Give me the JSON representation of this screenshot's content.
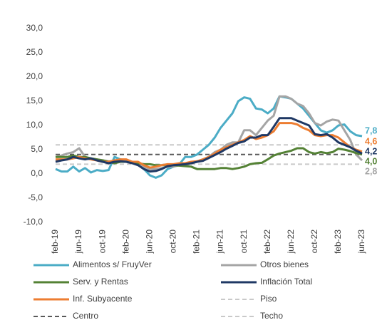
{
  "chart_data": {
    "type": "line",
    "categories": [
      "feb-19",
      null,
      null,
      null,
      "jun-19",
      null,
      null,
      null,
      "oct-19",
      null,
      null,
      null,
      "feb-20",
      null,
      null,
      null,
      "jun-20",
      null,
      null,
      null,
      "oct-20",
      null,
      null,
      null,
      "feb-21",
      null,
      null,
      null,
      "jun-21",
      null,
      null,
      null,
      "oct-21",
      null,
      null,
      null,
      "feb-22",
      null,
      null,
      null,
      "jun-22",
      null,
      null,
      null,
      "oct-22",
      null,
      null,
      null,
      "feb-23",
      null,
      null,
      null,
      "jun-23"
    ],
    "ylim": [
      -10,
      30
    ],
    "yticks": [
      {
        "value": -10,
        "label": "-10,0"
      },
      {
        "value": -5,
        "label": "-5,0"
      },
      {
        "value": 0,
        "label": "0,0"
      },
      {
        "value": 5,
        "label": "5,0"
      },
      {
        "value": 10,
        "label": "10,0"
      },
      {
        "value": 15,
        "label": "15,0"
      },
      {
        "value": 20,
        "label": "20,0"
      },
      {
        "value": 25,
        "label": "25,0"
      },
      {
        "value": 30,
        "label": "30,0"
      }
    ],
    "series": [
      {
        "name": "Alimentos  s/ FruyVer",
        "color": "#4bacc6",
        "values": [
          1.0,
          0.5,
          0.5,
          1.5,
          0.5,
          1.2,
          0.3,
          0.8,
          0.6,
          0.8,
          3.5,
          3.0,
          2.8,
          2.5,
          2.0,
          1.0,
          -0.3,
          -0.8,
          -0.3,
          1.0,
          1.5,
          2.0,
          3.5,
          3.5,
          4.0,
          5.0,
          6.0,
          7.5,
          9.5,
          11.0,
          12.5,
          15.0,
          15.8,
          15.5,
          13.5,
          13.3,
          12.5,
          13.5,
          16.0,
          15.8,
          15.5,
          14.5,
          13.5,
          12.0,
          10.5,
          9.0,
          8.5,
          9.0,
          10.0,
          10.2,
          8.8,
          8.0,
          7.8
        ],
        "value_labels": [
          null,
          null,
          null,
          null,
          null,
          null,
          null,
          null,
          null,
          null,
          null,
          null,
          null,
          null,
          null,
          null,
          null,
          null,
          null,
          null,
          null,
          null,
          null,
          null,
          null,
          null,
          null,
          null,
          null,
          null,
          null,
          null,
          null,
          null,
          null,
          null,
          null,
          null,
          null,
          null,
          null,
          null,
          null,
          null,
          null,
          null,
          null,
          null,
          null,
          null,
          null,
          null,
          "7,8"
        ]
      },
      {
        "name": "Otros bienes",
        "color": "#a5a5a5",
        "values": [
          3.5,
          3.8,
          4.2,
          4.5,
          5.3,
          3.5,
          3.2,
          3.0,
          2.8,
          2.6,
          2.5,
          2.6,
          2.5,
          2.3,
          2.0,
          1.5,
          1.0,
          1.0,
          1.2,
          1.5,
          1.5,
          1.8,
          1.8,
          2.2,
          2.5,
          3.0,
          3.5,
          4.5,
          5.0,
          6.0,
          6.5,
          6.5,
          9.0,
          9.0,
          8.0,
          9.5,
          11.0,
          12.0,
          16.0,
          16.0,
          15.5,
          14.5,
          14.0,
          12.5,
          10.5,
          10.0,
          10.8,
          11.2,
          11.0,
          9.0,
          7.0,
          4.0,
          2.8
        ],
        "value_labels": [
          null,
          null,
          null,
          null,
          null,
          null,
          null,
          null,
          null,
          null,
          null,
          null,
          null,
          null,
          null,
          null,
          null,
          null,
          null,
          null,
          null,
          null,
          null,
          null,
          null,
          null,
          null,
          null,
          null,
          null,
          null,
          null,
          null,
          null,
          null,
          null,
          null,
          null,
          null,
          null,
          null,
          null,
          null,
          null,
          null,
          null,
          null,
          null,
          null,
          null,
          null,
          null,
          "2,8"
        ]
      },
      {
        "name": "Serv. y Rentas",
        "color": "#548235",
        "values": [
          3.5,
          3.5,
          3.5,
          3.8,
          3.5,
          3.5,
          3.2,
          3.0,
          2.8,
          2.5,
          2.2,
          2.5,
          2.5,
          2.5,
          2.2,
          2.0,
          2.0,
          1.8,
          1.8,
          1.8,
          1.8,
          1.7,
          1.6,
          1.5,
          1.0,
          1.0,
          1.0,
          1.0,
          1.2,
          1.2,
          1.0,
          1.2,
          1.5,
          2.0,
          2.2,
          2.3,
          3.0,
          3.8,
          4.2,
          4.5,
          4.8,
          5.3,
          5.3,
          4.5,
          4.2,
          4.5,
          4.3,
          4.5,
          5.2,
          5.0,
          4.7,
          4.3,
          4.0
        ],
        "value_labels": [
          null,
          null,
          null,
          null,
          null,
          null,
          null,
          null,
          null,
          null,
          null,
          null,
          null,
          null,
          null,
          null,
          null,
          null,
          null,
          null,
          null,
          null,
          null,
          null,
          null,
          null,
          null,
          null,
          null,
          null,
          null,
          null,
          null,
          null,
          null,
          null,
          null,
          null,
          null,
          null,
          null,
          null,
          null,
          null,
          null,
          null,
          null,
          null,
          null,
          null,
          null,
          null,
          "4,0"
        ]
      },
      {
        "name": "Inflación Total",
        "color": "#1f3864",
        "values": [
          2.5,
          2.8,
          3.0,
          3.5,
          3.2,
          3.0,
          3.2,
          2.8,
          2.5,
          2.2,
          2.5,
          2.6,
          2.5,
          2.2,
          1.8,
          1.0,
          0.5,
          0.6,
          1.0,
          1.6,
          1.8,
          1.9,
          2.0,
          2.2,
          2.5,
          2.7,
          3.3,
          3.9,
          4.5,
          5.2,
          5.8,
          6.4,
          6.7,
          7.5,
          7.5,
          8.0,
          8.0,
          9.7,
          11.5,
          11.5,
          11.5,
          11.0,
          10.5,
          10.0,
          8.2,
          8.0,
          8.2,
          7.5,
          6.5,
          6.0,
          5.5,
          4.8,
          4.2
        ],
        "value_labels": [
          null,
          null,
          null,
          null,
          null,
          null,
          null,
          null,
          null,
          null,
          null,
          null,
          null,
          null,
          null,
          null,
          null,
          null,
          null,
          null,
          null,
          null,
          null,
          null,
          null,
          null,
          null,
          null,
          null,
          null,
          null,
          null,
          null,
          null,
          null,
          null,
          null,
          null,
          null,
          null,
          null,
          null,
          null,
          null,
          null,
          null,
          null,
          null,
          null,
          null,
          null,
          null,
          "4,2"
        ]
      },
      {
        "name": "Inf. Subyacente",
        "color": "#ed7d31",
        "values": [
          3.0,
          3.0,
          3.0,
          3.2,
          3.5,
          3.2,
          3.0,
          2.8,
          2.5,
          2.5,
          2.8,
          3.0,
          3.0,
          2.5,
          2.5,
          1.8,
          1.3,
          1.5,
          1.8,
          2.0,
          2.0,
          2.2,
          2.2,
          2.5,
          2.6,
          3.0,
          3.5,
          4.2,
          5.0,
          5.5,
          6.0,
          6.5,
          7.0,
          7.8,
          7.2,
          7.5,
          8.0,
          8.8,
          10.5,
          10.5,
          10.5,
          10.2,
          9.5,
          9.0,
          8.0,
          7.8,
          8.0,
          8.0,
          7.5,
          6.5,
          5.5,
          5.0,
          4.6
        ],
        "value_labels": [
          null,
          null,
          null,
          null,
          null,
          null,
          null,
          null,
          null,
          null,
          null,
          null,
          null,
          null,
          null,
          null,
          null,
          null,
          null,
          null,
          null,
          null,
          null,
          null,
          null,
          null,
          null,
          null,
          null,
          null,
          null,
          null,
          null,
          null,
          null,
          null,
          null,
          null,
          null,
          null,
          null,
          null,
          null,
          null,
          null,
          null,
          null,
          null,
          null,
          null,
          null,
          null,
          "4,6"
        ]
      },
      {
        "name": "Piso",
        "color": "#c9c9c9",
        "dash": true,
        "values": [
          2,
          2,
          2,
          2,
          2,
          2,
          2,
          2,
          2,
          2,
          2,
          2,
          2,
          2,
          2,
          2,
          2,
          2,
          2,
          2,
          2,
          2,
          2,
          2,
          2,
          2,
          2,
          2,
          2,
          2,
          2,
          2,
          2,
          2,
          2,
          2,
          2,
          2,
          2,
          2,
          2,
          2,
          2,
          2,
          2,
          2,
          2,
          2,
          2,
          2,
          2,
          2,
          2
        ]
      },
      {
        "name": "Centro",
        "color": "#595959",
        "dash": true,
        "values": [
          4,
          4,
          4,
          4,
          4,
          4,
          4,
          4,
          4,
          4,
          4,
          4,
          4,
          4,
          4,
          4,
          4,
          4,
          4,
          4,
          4,
          4,
          4,
          4,
          4,
          4,
          4,
          4,
          4,
          4,
          4,
          4,
          4,
          4,
          4,
          4,
          4,
          4,
          4,
          4,
          4,
          4,
          4,
          4,
          4,
          4,
          4,
          4,
          4,
          4,
          4,
          4,
          4
        ]
      },
      {
        "name": "Techo",
        "color": "#c9c9c9",
        "dash": true,
        "values": [
          6,
          6,
          6,
          6,
          6,
          6,
          6,
          6,
          6,
          6,
          6,
          6,
          6,
          6,
          6,
          6,
          6,
          6,
          6,
          6,
          6,
          6,
          6,
          6,
          6,
          6,
          6,
          6,
          6,
          6,
          6,
          6,
          6,
          6,
          6,
          6,
          6,
          6,
          6,
          6,
          6,
          6,
          6,
          6,
          6,
          6,
          6,
          6,
          6,
          6,
          6,
          6,
          6
        ]
      }
    ]
  }
}
